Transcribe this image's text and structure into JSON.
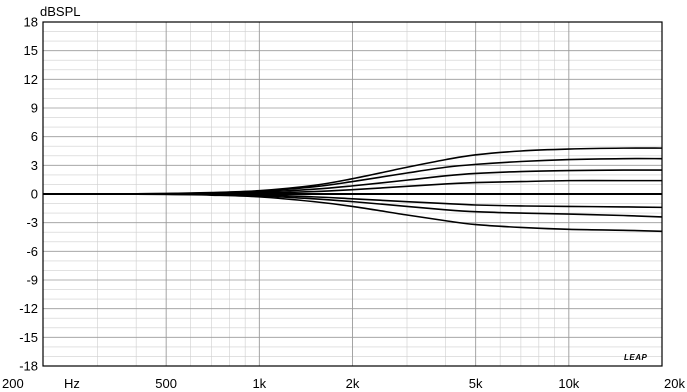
{
  "chart_data": {
    "type": "line",
    "ylabel": "dBSPL",
    "xunit": "Hz",
    "brand": "LEAP",
    "xscale": "log",
    "xlim": [
      200,
      20000
    ],
    "ylim": [
      -18,
      18
    ],
    "grid": true,
    "y_ticks": [
      18,
      15,
      12,
      9,
      6,
      3,
      0,
      -3,
      -6,
      -9,
      -12,
      -15,
      -18
    ],
    "y_tick_labels": [
      "18",
      "15",
      "12",
      "9",
      "6",
      "3",
      "0",
      "-3",
      "-6",
      "-9",
      "-12",
      "-15",
      "-18"
    ],
    "x_ticks": [
      200,
      500,
      1000,
      2000,
      5000,
      10000,
      20000
    ],
    "x_tick_labels": [
      "200",
      "500",
      "1k",
      "2k",
      "5k",
      "10k",
      "20k"
    ],
    "x": [
      300,
      500,
      700,
      1000,
      1500,
      2000,
      3000,
      4000,
      5000,
      7000,
      10000,
      15000,
      20000
    ],
    "series": [
      {
        "values": [
          0,
          0.05,
          0.15,
          0.35,
          0.9,
          1.6,
          2.8,
          3.6,
          4.1,
          4.5,
          4.7,
          4.8,
          4.8
        ]
      },
      {
        "values": [
          0,
          0.04,
          0.12,
          0.3,
          0.75,
          1.3,
          2.2,
          2.8,
          3.1,
          3.4,
          3.6,
          3.7,
          3.7
        ]
      },
      {
        "values": [
          0,
          0.03,
          0.08,
          0.2,
          0.5,
          0.85,
          1.45,
          1.9,
          2.15,
          2.35,
          2.45,
          2.5,
          2.5
        ]
      },
      {
        "values": [
          0,
          0.02,
          0.05,
          0.1,
          0.25,
          0.45,
          0.8,
          1.05,
          1.2,
          1.3,
          1.4,
          1.4,
          1.4
        ]
      },
      {
        "values": [
          0,
          -0.02,
          -0.05,
          -0.1,
          -0.3,
          -0.5,
          -0.8,
          -1.0,
          -1.15,
          -1.25,
          -1.3,
          -1.35,
          -1.4
        ]
      },
      {
        "values": [
          0,
          -0.03,
          -0.08,
          -0.2,
          -0.5,
          -0.8,
          -1.3,
          -1.65,
          -1.85,
          -2.0,
          -2.1,
          -2.25,
          -2.4
        ]
      },
      {
        "values": [
          0,
          -0.04,
          -0.12,
          -0.3,
          -0.8,
          -1.3,
          -2.2,
          -2.8,
          -3.2,
          -3.5,
          -3.7,
          -3.8,
          -3.9
        ]
      }
    ]
  }
}
